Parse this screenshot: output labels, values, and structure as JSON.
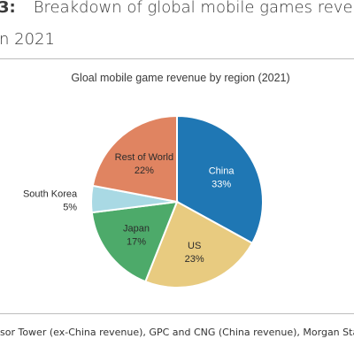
{
  "figure": {
    "number": "3:",
    "title_line1": "Breakdown of global mobile games reve",
    "title_line2": "n 2021"
  },
  "source_text": "sor Tower (ex-China revenue), GPC and CNG (China revenue), Morgan Stan",
  "chart_data": {
    "type": "pie",
    "title": "Gloal mobile game revenue by region (2021)",
    "slices": [
      {
        "label": "China",
        "value": 33,
        "value_label": "33%",
        "color": "#1f77b4"
      },
      {
        "label": "US",
        "value": 23,
        "value_label": "23%",
        "color": "#e8cb80"
      },
      {
        "label": "Japan",
        "value": 17,
        "value_label": "17%",
        "color": "#4daa6a"
      },
      {
        "label": "South Korea",
        "value": 5,
        "value_label": "5%",
        "color": "#a9d9e4"
      },
      {
        "label": "Rest of World",
        "value": 22,
        "value_label": "22%",
        "color": "#e08461"
      }
    ],
    "start": "12 o'clock",
    "direction": "clockwise",
    "legend": "none"
  },
  "colors": {
    "text": "#3a3a3a",
    "label_on_dark": "#ffffff",
    "label_on_light": "#2b2b2b",
    "slice_border": "#ffffff",
    "rule": "#bdbdbd"
  }
}
